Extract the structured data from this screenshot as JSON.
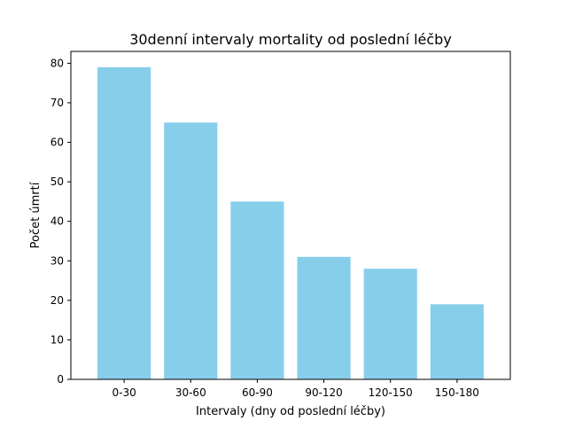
{
  "chart_data": {
    "type": "bar",
    "title": "30denní intervaly mortality od poslední léčby",
    "xlabel": "Intervaly (dny od poslední léčby)",
    "ylabel": "Počet úmrtí",
    "categories": [
      "0-30",
      "30-60",
      "60-90",
      "90-120",
      "120-150",
      "150-180"
    ],
    "values": [
      79,
      65,
      45,
      31,
      28,
      19
    ],
    "ylim": [
      0,
      83
    ],
    "yticks": [
      0,
      10,
      20,
      30,
      40,
      50,
      60,
      70,
      80
    ],
    "bar_color": "#87ceeb",
    "grid": false,
    "legend": false
  }
}
